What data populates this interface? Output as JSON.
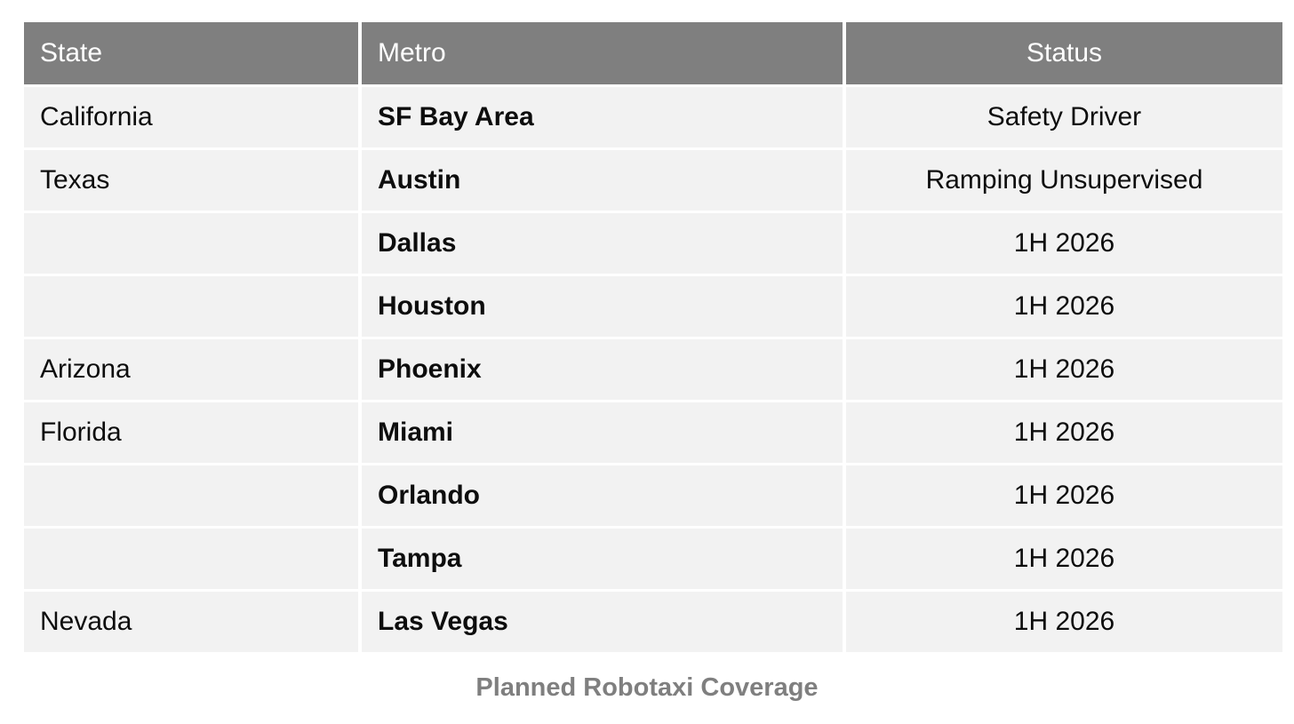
{
  "chart_data": {
    "type": "table",
    "title": "Planned Robotaxi Coverage",
    "columns": [
      "State",
      "Metro",
      "Status"
    ],
    "rows": [
      [
        "California",
        "SF Bay Area",
        "Safety Driver"
      ],
      [
        "Texas",
        "Austin",
        "Ramping Unsupervised"
      ],
      [
        "",
        "Dallas",
        "1H 2026"
      ],
      [
        "",
        "Houston",
        "1H 2026"
      ],
      [
        "Arizona",
        "Phoenix",
        "1H 2026"
      ],
      [
        "Florida",
        "Miami",
        "1H 2026"
      ],
      [
        "",
        "Orlando",
        "1H 2026"
      ],
      [
        "",
        "Tampa",
        "1H 2026"
      ],
      [
        "Nevada",
        "Las Vegas",
        "1H 2026"
      ]
    ],
    "layout": {
      "header_align": [
        "left",
        "left",
        "center"
      ],
      "body_align": [
        "left",
        "left",
        "center"
      ],
      "metro_column_bold": true,
      "caption_position": "bottom-center"
    }
  },
  "colors": {
    "header_bg": "#7f7f7f",
    "header_text": "#ffffff",
    "row_bg": "#f2f2f2",
    "body_text": "#0d0d0d",
    "gridline": "#ffffff",
    "caption_text": "#7f7f7f",
    "page_bg": "#ffffff"
  }
}
